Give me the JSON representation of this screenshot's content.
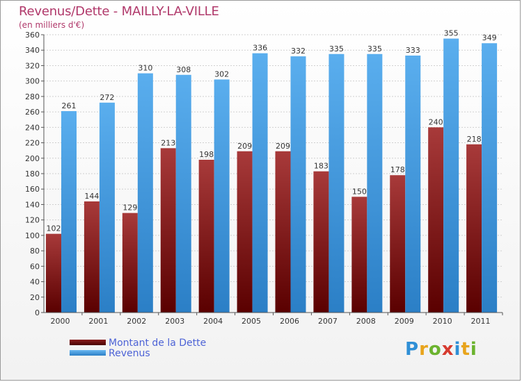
{
  "header": {
    "title": "Revenus/Dette - MAILLY-LA-VILLE",
    "subtitle": "(en milliers d'€)"
  },
  "brand": {
    "letters": [
      {
        "char": "P",
        "color": "#2f8fd6"
      },
      {
        "char": "r",
        "color": "#e8a41c"
      },
      {
        "char": "o",
        "color": "#6bb32e"
      },
      {
        "char": "x",
        "color": "#d63a2f"
      },
      {
        "char": "i",
        "color": "#2f8fd6"
      },
      {
        "char": "t",
        "color": "#e8a41c"
      },
      {
        "char": "i",
        "color": "#6bb32e"
      }
    ]
  },
  "legend": {
    "items": [
      {
        "label": "Montant de la Dette",
        "color": "#6b0f0f"
      },
      {
        "label": "Revenus",
        "color": "#4a9fe3"
      }
    ]
  },
  "chart_data": {
    "type": "bar",
    "title": "Revenus/Dette - MAILLY-LA-VILLE",
    "subtitle": "(en milliers d'€)",
    "xlabel": "",
    "ylabel": "",
    "ylim": [
      0,
      360
    ],
    "yticks": [
      0,
      20,
      40,
      60,
      80,
      100,
      120,
      140,
      160,
      180,
      200,
      220,
      240,
      260,
      280,
      300,
      320,
      340,
      360
    ],
    "categories": [
      "2000",
      "2001",
      "2002",
      "2003",
      "2004",
      "2005",
      "2006",
      "2007",
      "2008",
      "2009",
      "2010",
      "2011"
    ],
    "series": [
      {
        "name": "Montant de la Dette",
        "color": "#6b0f0f",
        "values": [
          102,
          144,
          129,
          213,
          198,
          209,
          209,
          183,
          150,
          178,
          240,
          218
        ]
      },
      {
        "name": "Revenus",
        "color": "#4a9fe3",
        "values": [
          261,
          272,
          310,
          308,
          302,
          336,
          332,
          335,
          335,
          333,
          355,
          349
        ]
      }
    ],
    "grid": true,
    "legend_position": "bottom-left"
  }
}
